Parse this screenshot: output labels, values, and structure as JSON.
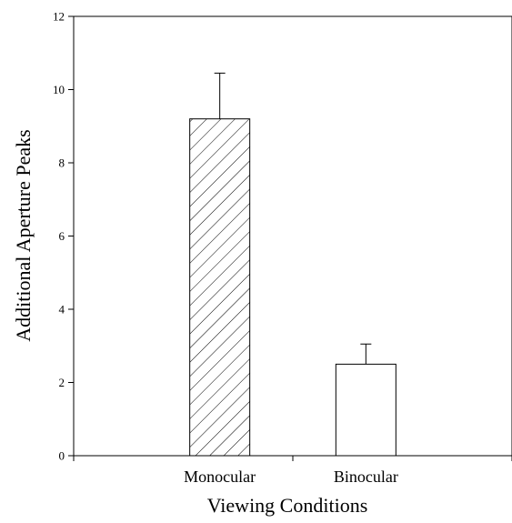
{
  "chart_data": {
    "type": "bar",
    "title": "",
    "xlabel": "Viewing Conditions",
    "ylabel": "Additional Aperture Peaks",
    "categories": [
      "Monocular",
      "Binocular"
    ],
    "values": [
      9.2,
      2.5
    ],
    "error_upper": [
      1.25,
      0.55
    ],
    "bar_fills": [
      "diagonal-hatch",
      "none"
    ],
    "ylim": [
      0,
      12
    ],
    "yticks": [
      0,
      2,
      4,
      6,
      8,
      10,
      12
    ],
    "grid": false,
    "legend": "none"
  },
  "colors": {
    "axis": "#000000",
    "bar_edge": "#000000",
    "bar_fill": "#ffffff",
    "background": "#ffffff"
  }
}
